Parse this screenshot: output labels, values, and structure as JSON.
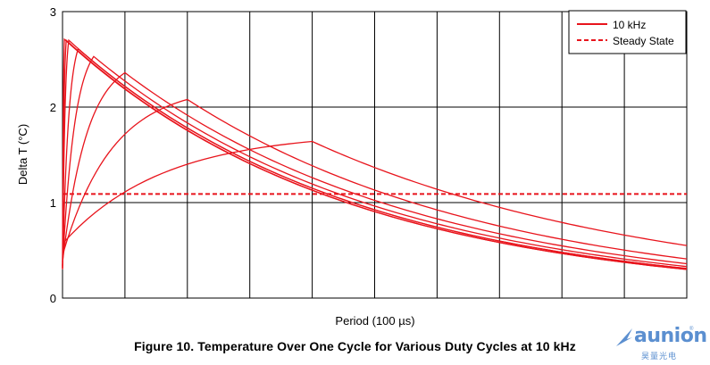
{
  "chart_data": {
    "type": "line",
    "title": "Figure 10. Temperature Over One Cycle for Various Duty Cycles at 10 kHz",
    "xlabel": "Period (100 µs)",
    "ylabel": "Delta T (°C)",
    "xlim": [
      0,
      100
    ],
    "ylim": [
      0,
      3
    ],
    "yticks": [
      "0",
      "1",
      "2",
      "3"
    ],
    "x_gridlines": [
      0,
      10,
      20,
      30,
      40,
      50,
      60,
      70,
      80,
      90,
      100
    ],
    "grid": true,
    "legend_position": "top-right",
    "legend": [
      {
        "label": "10 kHz",
        "style": "solid"
      },
      {
        "label": "Steady State",
        "style": "dashed"
      }
    ],
    "steady_state": 1.09,
    "series_color": "#e8141c",
    "series": [
      {
        "peak_x": 0.3,
        "peak_y": 2.71,
        "start_y": 0.3,
        "end_y": 0.3
      },
      {
        "peak_x": 0.6,
        "peak_y": 2.7,
        "start_y": 0.31,
        "end_y": 0.3
      },
      {
        "peak_x": 1.0,
        "peak_y": 2.7,
        "start_y": 0.31,
        "end_y": 0.31
      },
      {
        "peak_x": 2.5,
        "peak_y": 2.61,
        "start_y": 0.32,
        "end_y": 0.31
      },
      {
        "peak_x": 5.0,
        "peak_y": 2.53,
        "start_y": 0.34,
        "end_y": 0.33
      },
      {
        "peak_x": 10.0,
        "peak_y": 2.36,
        "start_y": 0.38,
        "end_y": 0.36
      },
      {
        "peak_x": 20.0,
        "peak_y": 2.08,
        "start_y": 0.45,
        "end_y": 0.41
      },
      {
        "peak_x": 40.0,
        "peak_y": 1.64,
        "start_y": 0.57,
        "end_y": 0.55
      }
    ]
  },
  "watermark": {
    "brand": "aunion",
    "sub": "昊量光电",
    "mark": "®"
  }
}
